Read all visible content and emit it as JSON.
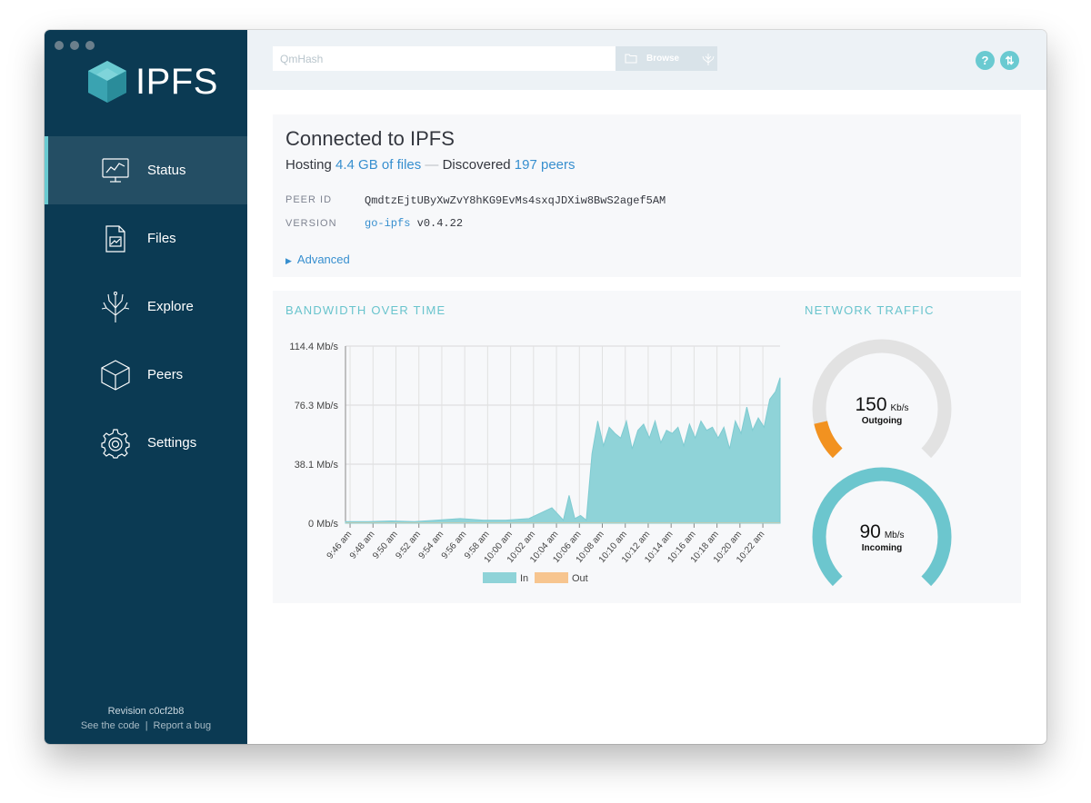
{
  "sidebar": {
    "logo_text": "IPFS",
    "items": [
      {
        "label": "Status",
        "icon": "status-chart-icon",
        "active": true
      },
      {
        "label": "Files",
        "icon": "files-icon",
        "active": false
      },
      {
        "label": "Explore",
        "icon": "explore-tree-icon",
        "active": false
      },
      {
        "label": "Peers",
        "icon": "peers-cube-icon",
        "active": false
      },
      {
        "label": "Settings",
        "icon": "settings-gear-icon",
        "active": false
      }
    ],
    "footer": {
      "revision": "Revision c0cf2b8",
      "see_code": "See the code",
      "separator": "|",
      "report_bug": "Report a bug"
    }
  },
  "header": {
    "search_placeholder": "QmHash",
    "browse_label": "Browse",
    "help_icon": "?",
    "sync_icon": "⇅"
  },
  "status": {
    "title": "Connected to IPFS",
    "hosting_prefix": "Hosting",
    "hosting_link": "4.4 GB of files",
    "dash": "—",
    "discovered_prefix": "Discovered",
    "peers_link": "197 peers",
    "peer_id_label": "PEER ID",
    "peer_id_value": "QmdtzEjtUByXwZvY8hKG9EvMs4sxqJDXiw8BwS2agef5AM",
    "version_label": "VERSION",
    "version_link": "go-ipfs",
    "version_value": "v0.4.22",
    "advanced_label": "Advanced"
  },
  "bandwidth": {
    "title": "BANDWIDTH OVER TIME",
    "legend_in": "In",
    "legend_out": "Out"
  },
  "network": {
    "title": "NETWORK TRAFFIC",
    "outgoing_value": "150",
    "outgoing_unit": "Kb/s",
    "outgoing_label": "Outgoing",
    "outgoing_fraction": 0.12,
    "incoming_value": "90",
    "incoming_unit": "Mb/s",
    "incoming_label": "Incoming",
    "incoming_fraction": 1.0
  },
  "colors": {
    "sidebar_bg": "#0b3a53",
    "accent_teal": "#6acad1",
    "link_blue": "#378fcf",
    "in_series": "#8fd3d8",
    "out_series": "#f7c58f",
    "gauge_orange": "#f29220"
  },
  "chart_data": {
    "type": "area",
    "title": "BANDWIDTH OVER TIME",
    "xlabel": "",
    "ylabel": "",
    "ylim": [
      0,
      114.4
    ],
    "y_ticks": [
      "0 Mb/s",
      "38.1 Mb/s",
      "76.3 Mb/s",
      "114.4 Mb/s"
    ],
    "y_tick_values": [
      0,
      38.1,
      76.3,
      114.4
    ],
    "x_ticks": [
      "9:46 am",
      "9:48 am",
      "9:50 am",
      "9:52 am",
      "9:54 am",
      "9:56 am",
      "9:58 am",
      "10:00 am",
      "10:02 am",
      "10:04 am",
      "10:06 am",
      "10:08 am",
      "10:10 am",
      "10:12 am",
      "10:14 am",
      "10:16 am",
      "10:18 am",
      "10:20 am",
      "10:22 am"
    ],
    "grid": true,
    "legend": "bottom-center",
    "series": [
      {
        "name": "In",
        "x_minutes": [
          0,
          2,
          4,
          6,
          8,
          10,
          12,
          14,
          16,
          18,
          19,
          19.5,
          20,
          20.5,
          21,
          21.5,
          22,
          22.5,
          23,
          23.5,
          24,
          24.5,
          25,
          25.5,
          26,
          26.5,
          27,
          27.5,
          28,
          28.5,
          29,
          29.5,
          30,
          30.5,
          31,
          31.5,
          32,
          32.5,
          33,
          33.5,
          34,
          34.5,
          35,
          35.5,
          36,
          36.5,
          37,
          37.5,
          37.9
        ],
        "values": [
          1,
          1,
          1.5,
          1,
          2,
          3,
          2,
          2,
          3,
          10,
          2,
          18,
          3,
          5,
          2,
          45,
          66,
          50,
          62,
          58,
          55,
          66,
          48,
          60,
          64,
          55,
          66,
          52,
          60,
          58,
          62,
          50,
          64,
          55,
          66,
          60,
          62,
          55,
          62,
          48,
          66,
          58,
          75,
          60,
          68,
          62,
          80,
          85,
          94
        ]
      },
      {
        "name": "Out",
        "x_minutes": [
          0,
          10,
          20,
          30,
          37.9
        ],
        "values": [
          0.3,
          0.3,
          0.3,
          0.3,
          0.3
        ]
      }
    ]
  }
}
